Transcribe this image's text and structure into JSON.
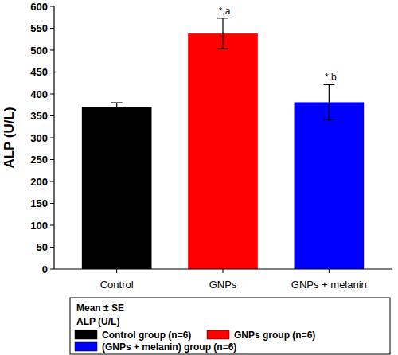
{
  "chart_data": {
    "type": "bar",
    "y_label": "ALP (U/L)",
    "categories": [
      "Control",
      "GNPs",
      "GNPs + melanin"
    ],
    "values": [
      370,
      538,
      381
    ],
    "errors": [
      10,
      35,
      40
    ],
    "colors": [
      "#000000",
      "#ff0000",
      "#0000ff"
    ],
    "annotations": [
      {
        "category": "GNPs",
        "text": "*,a"
      },
      {
        "category": "GNPs + melanin",
        "text": "*,b"
      }
    ],
    "ylim": [
      0,
      600
    ],
    "yticks": [
      0,
      50,
      100,
      150,
      200,
      250,
      300,
      350,
      400,
      450,
      500,
      550,
      600
    ],
    "grid": false,
    "legend": "bottom",
    "legend_title": "Mean ± SE",
    "legend_subtitle": "ALP (U/L)",
    "legend_labels": [
      "Control group (n=6)",
      "GNPs group (n=6)",
      "(GNPs + melanin) group (n=6)"
    ]
  }
}
